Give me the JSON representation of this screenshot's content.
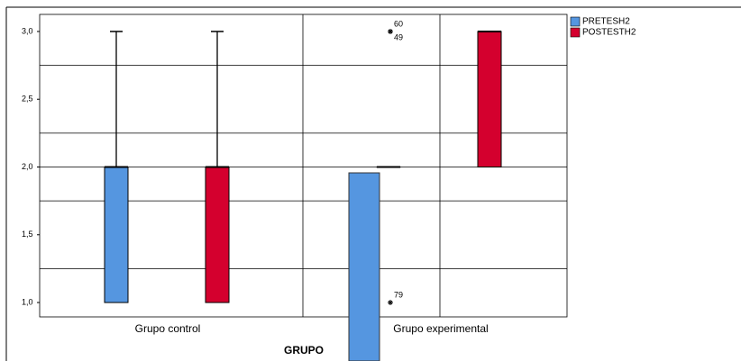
{
  "chart_data": {
    "type": "boxplot",
    "x_label": "GRUPO",
    "categories": [
      "Grupo control",
      "Grupo experimental"
    ],
    "ylim": [
      0.894,
      3.126
    ],
    "yticks": [
      {
        "value": 3,
        "label": "3,0"
      },
      {
        "value": 2.5,
        "label": "2,5"
      },
      {
        "value": 2,
        "label": "2,0"
      },
      {
        "value": 1.5,
        "label": "1,5"
      },
      {
        "value": 1,
        "label": "1,0"
      }
    ],
    "gridlines": [
      2.75,
      2.25,
      2,
      1.75,
      1.25
    ],
    "legend": "top-right",
    "series": [
      {
        "name": "PRETESH2",
        "color": "#5596e0",
        "boxes": [
          {
            "min": 1,
            "q1": 1,
            "median": 2,
            "q3": 2,
            "max": 3,
            "outliers": [],
            "outlier_ids": []
          },
          {
            "min": 2,
            "q1": 2,
            "median": 2,
            "q3": 2,
            "max": 2,
            "outliers": [
              3,
              3,
              1
            ],
            "outlier_ids": [
              "60",
              "49",
              "79"
            ]
          }
        ]
      },
      {
        "name": "POSTESTH2",
        "color": "#d4002e",
        "boxes": [
          {
            "min": 1,
            "q1": 1,
            "median": 2,
            "q3": 2,
            "max": 3,
            "outliers": [],
            "outlier_ids": []
          },
          {
            "min": 2,
            "q1": 2,
            "median": 3,
            "q3": 3,
            "max": 3,
            "outliers": [],
            "outlier_ids": []
          }
        ]
      }
    ]
  }
}
